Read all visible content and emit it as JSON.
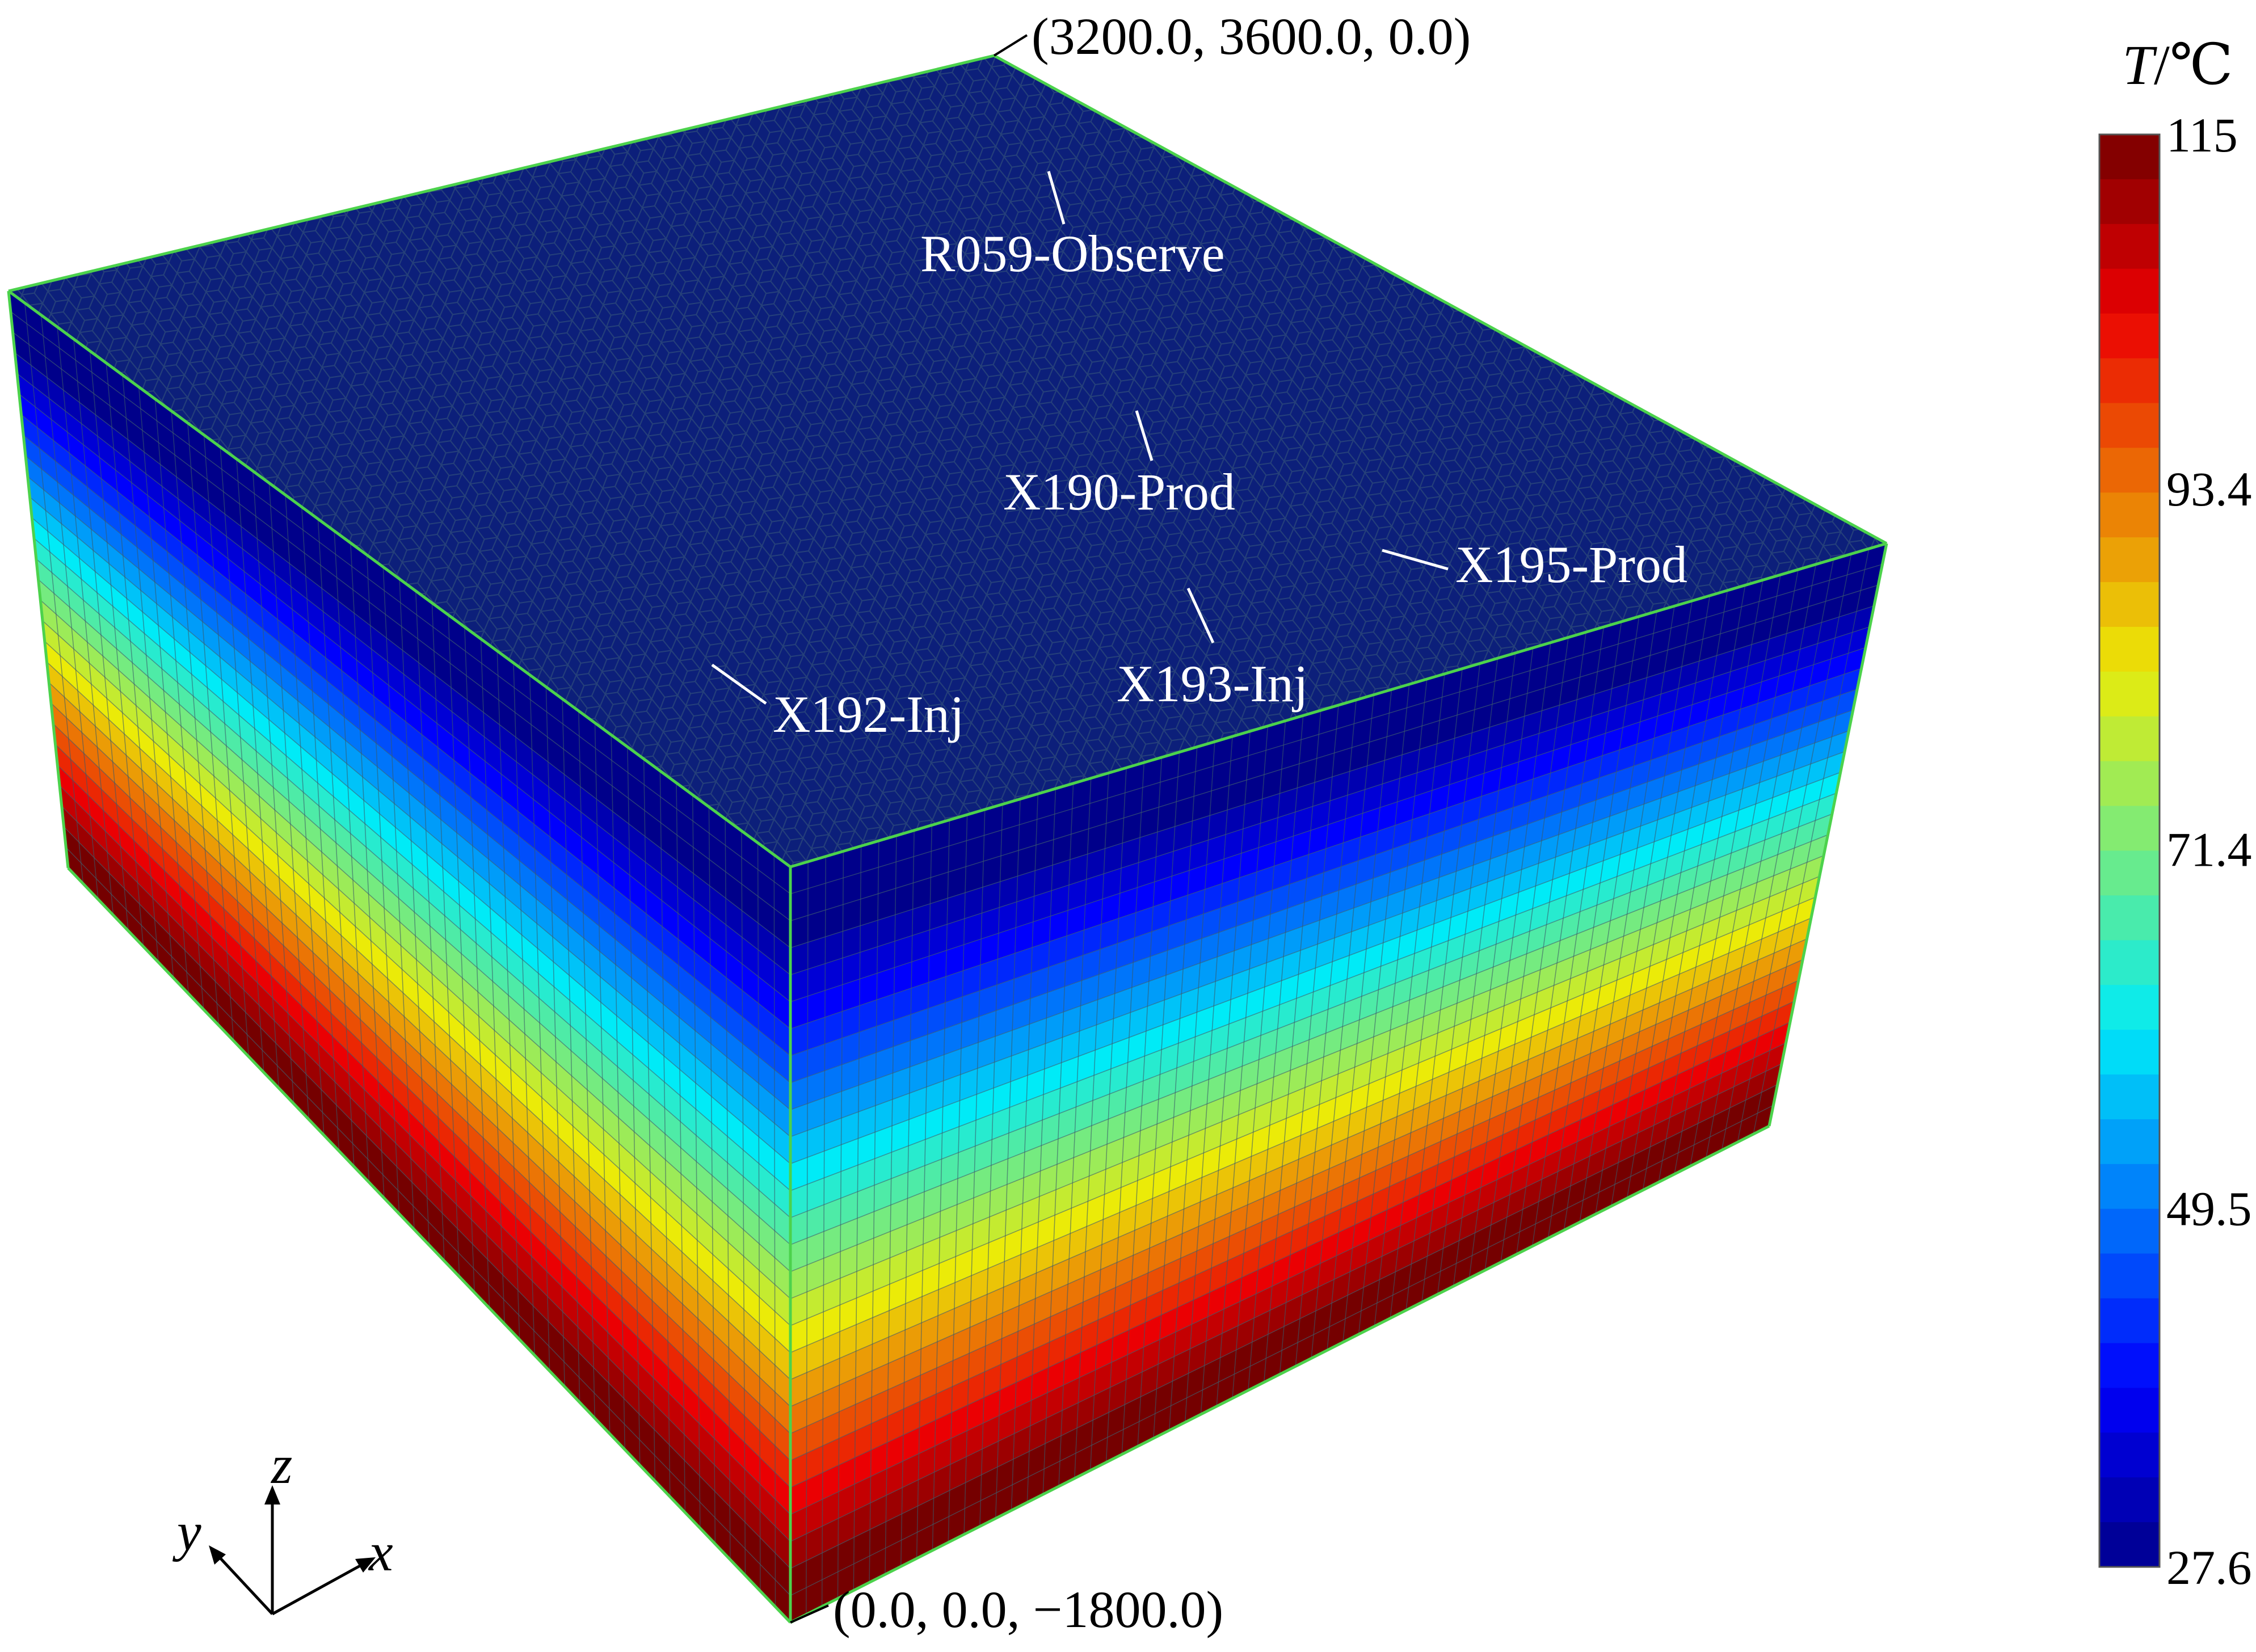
{
  "model": {
    "corner_top_label": "(3200.0, 3600.0, 0.0)",
    "corner_bottom_label": "(0.0, 0.0, −1800.0)",
    "top_face_color": "#0c1f7a",
    "edge_color": "#4cd24c",
    "mesh_line_color": "#3a5a6a",
    "layers": 28
  },
  "wells": [
    {
      "name": "R059-Observe"
    },
    {
      "name": "X190-Prod"
    },
    {
      "name": "X195-Prod"
    },
    {
      "name": "X193-Inj"
    },
    {
      "name": "X192-Inj"
    }
  ],
  "axes": {
    "x": "x",
    "y": "y",
    "z": "z"
  },
  "colorbar": {
    "title_var": "T",
    "title_unit": "/℃",
    "min": 27.6,
    "max": 115,
    "ticks": [
      {
        "label": "115",
        "value": 115
      },
      {
        "label": "93.4",
        "value": 93.4
      },
      {
        "label": "71.4",
        "value": 71.4
      },
      {
        "label": "49.5",
        "value": 49.5
      },
      {
        "label": "27.6",
        "value": 27.6
      }
    ],
    "levels": 32
  }
}
